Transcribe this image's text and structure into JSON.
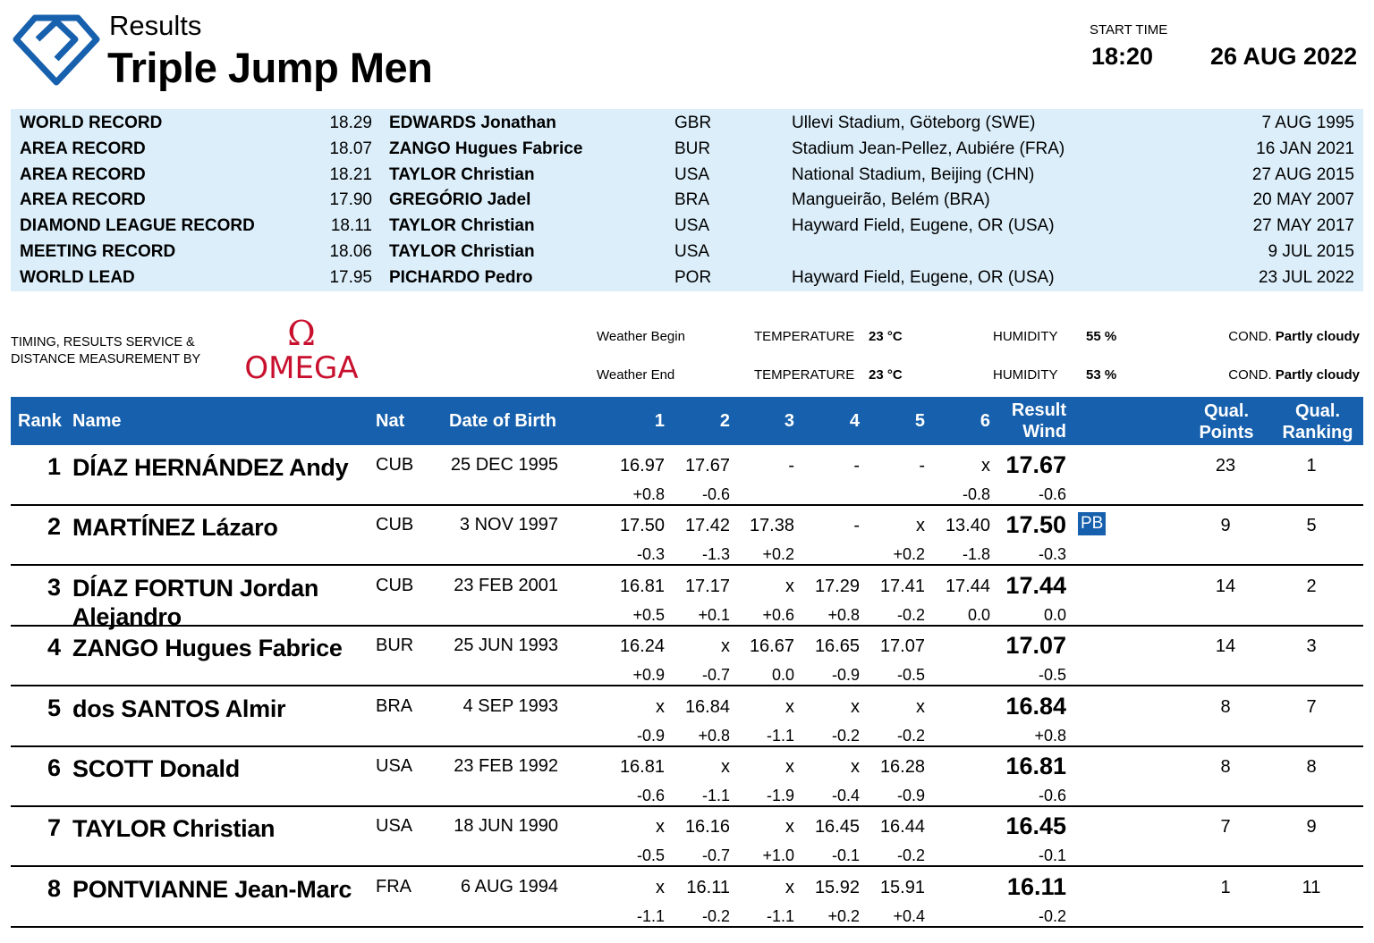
{
  "header": {
    "section": "Results",
    "event": "Triple Jump Men",
    "start_time_label": "START TIME",
    "start_time": "18:20",
    "date": "26 AUG 2022"
  },
  "records": [
    {
      "type": "WORLD RECORD",
      "mark": "18.29",
      "athlete": "EDWARDS Jonathan",
      "nat": "GBR",
      "venue": "Ullevi Stadium, Göteborg (SWE)",
      "date": "7 AUG 1995"
    },
    {
      "type": "AREA RECORD",
      "mark": "18.07",
      "athlete": "ZANGO Hugues Fabrice",
      "nat": "BUR",
      "venue": "Stadium Jean-Pellez, Aubiére (FRA)",
      "date": "16 JAN 2021"
    },
    {
      "type": "AREA RECORD",
      "mark": "18.21",
      "athlete": "TAYLOR Christian",
      "nat": "USA",
      "venue": "National Stadium, Beijing (CHN)",
      "date": "27 AUG 2015"
    },
    {
      "type": "AREA RECORD",
      "mark": "17.90",
      "athlete": "GREGÓRIO Jadel",
      "nat": "BRA",
      "venue": "Mangueirão, Belém (BRA)",
      "date": "20 MAY 2007"
    },
    {
      "type": "DIAMOND LEAGUE RECORD",
      "mark": "18.11",
      "athlete": "TAYLOR Christian",
      "nat": "USA",
      "venue": "Hayward Field, Eugene, OR (USA)",
      "date": "27 MAY 2017"
    },
    {
      "type": "MEETING RECORD",
      "mark": "18.06",
      "athlete": "TAYLOR Christian",
      "nat": "USA",
      "venue": "",
      "date": "9 JUL 2015"
    },
    {
      "type": "WORLD LEAD",
      "mark": "17.95",
      "athlete": "PICHARDO Pedro",
      "nat": "POR",
      "venue": "Hayward Field, Eugene, OR (USA)",
      "date": "23 JUL 2022"
    }
  ],
  "timing": {
    "line1": "TIMING, RESULTS SERVICE &",
    "line2": "DISTANCE MEASUREMENT BY",
    "brand": "OMEGA"
  },
  "weather": {
    "begin_label": "Weather Begin",
    "end_label": "Weather End",
    "temp_label": "TEMPERATURE",
    "hum_label": "HUMIDITY",
    "cond_label": "COND.",
    "begin_temp": "23 °C",
    "begin_hum": "55 %",
    "begin_cond": "Partly cloudy",
    "end_temp": "23 °C",
    "end_hum": "53 %",
    "end_cond": "Partly cloudy"
  },
  "table": {
    "headers": {
      "rank": "Rank",
      "name": "Name",
      "nat": "Nat",
      "dob": "Date of Birth",
      "a1": "1",
      "a2": "2",
      "a3": "3",
      "a4": "4",
      "a5": "5",
      "a6": "6",
      "result1": "Result",
      "result2": "Wind",
      "qp1": "Qual.",
      "qp2": "Points",
      "qr1": "Qual.",
      "qr2": "Ranking"
    },
    "rows": [
      {
        "rank": "1",
        "name": "DÍAZ HERNÁNDEZ Andy",
        "nat": "CUB",
        "dob": "25 DEC 1995",
        "a1": "16.97",
        "a2": "17.67",
        "a3": "-",
        "a4": "-",
        "a5": "-",
        "a6": "x",
        "w1": "+0.8",
        "w2": "-0.6",
        "w3": "",
        "w4": "",
        "w5": "",
        "w6": "-0.8",
        "result": "17.67",
        "result_wind": "-0.6",
        "pb": "",
        "qual_points": "23",
        "qual_ranking": "1"
      },
      {
        "rank": "2",
        "name": "MARTÍNEZ Lázaro",
        "nat": "CUB",
        "dob": "3 NOV 1997",
        "a1": "17.50",
        "a2": "17.42",
        "a3": "17.38",
        "a4": "-",
        "a5": "x",
        "a6": "13.40",
        "w1": "-0.3",
        "w2": "-1.3",
        "w3": "+0.2",
        "w4": "",
        "w5": "+0.2",
        "w6": "-1.8",
        "result": "17.50",
        "result_wind": "-0.3",
        "pb": "PB",
        "qual_points": "9",
        "qual_ranking": "5"
      },
      {
        "rank": "3",
        "name": "DÍAZ FORTUN Jordan",
        "name2": "Alejandro",
        "nat": "CUB",
        "dob": "23 FEB 2001",
        "a1": "16.81",
        "a2": "17.17",
        "a3": "x",
        "a4": "17.29",
        "a5": "17.41",
        "a6": "17.44",
        "w1": "+0.5",
        "w2": "+0.1",
        "w3": "+0.6",
        "w4": "+0.8",
        "w5": "-0.2",
        "w6": "0.0",
        "result": "17.44",
        "result_wind": "0.0",
        "pb": "",
        "qual_points": "14",
        "qual_ranking": "2"
      },
      {
        "rank": "4",
        "name": "ZANGO Hugues Fabrice",
        "nat": "BUR",
        "dob": "25 JUN 1993",
        "a1": "16.24",
        "a2": "x",
        "a3": "16.67",
        "a4": "16.65",
        "a5": "17.07",
        "a6": "",
        "w1": "+0.9",
        "w2": "-0.7",
        "w3": "0.0",
        "w4": "-0.9",
        "w5": "-0.5",
        "w6": "",
        "result": "17.07",
        "result_wind": "-0.5",
        "pb": "",
        "qual_points": "14",
        "qual_ranking": "3"
      },
      {
        "rank": "5",
        "name": "dos SANTOS Almir",
        "nat": "BRA",
        "dob": "4 SEP 1993",
        "a1": "x",
        "a2": "16.84",
        "a3": "x",
        "a4": "x",
        "a5": "x",
        "a6": "",
        "w1": "-0.9",
        "w2": "+0.8",
        "w3": "-1.1",
        "w4": "-0.2",
        "w5": "-0.2",
        "w6": "",
        "result": "16.84",
        "result_wind": "+0.8",
        "pb": "",
        "qual_points": "8",
        "qual_ranking": "7"
      },
      {
        "rank": "6",
        "name": "SCOTT Donald",
        "nat": "USA",
        "dob": "23 FEB 1992",
        "a1": "16.81",
        "a2": "x",
        "a3": "x",
        "a4": "x",
        "a5": "16.28",
        "a6": "",
        "w1": "-0.6",
        "w2": "-1.1",
        "w3": "-1.9",
        "w4": "-0.4",
        "w5": "-0.9",
        "w6": "",
        "result": "16.81",
        "result_wind": "-0.6",
        "pb": "",
        "qual_points": "8",
        "qual_ranking": "8"
      },
      {
        "rank": "7",
        "name": "TAYLOR Christian",
        "nat": "USA",
        "dob": "18 JUN 1990",
        "a1": "x",
        "a2": "16.16",
        "a3": "x",
        "a4": "16.45",
        "a5": "16.44",
        "a6": "",
        "w1": "-0.5",
        "w2": "-0.7",
        "w3": "+1.0",
        "w4": "-0.1",
        "w5": "-0.2",
        "w6": "",
        "result": "16.45",
        "result_wind": "-0.1",
        "pb": "",
        "qual_points": "7",
        "qual_ranking": "9"
      },
      {
        "rank": "8",
        "name": "PONTVIANNE Jean-Marc",
        "nat": "FRA",
        "dob": "6 AUG 1994",
        "a1": "x",
        "a2": "16.11",
        "a3": "x",
        "a4": "15.92",
        "a5": "15.91",
        "a6": "",
        "w1": "-1.1",
        "w2": "-0.2",
        "w3": "-1.1",
        "w4": "+0.2",
        "w5": "+0.4",
        "w6": "",
        "result": "16.11",
        "result_wind": "-0.2",
        "pb": "",
        "qual_points": "1",
        "qual_ranking": "11"
      }
    ]
  },
  "colors": {
    "brand_blue": "#1660ad",
    "record_bg": "#dbeefa",
    "omega_red": "#c8102e"
  }
}
